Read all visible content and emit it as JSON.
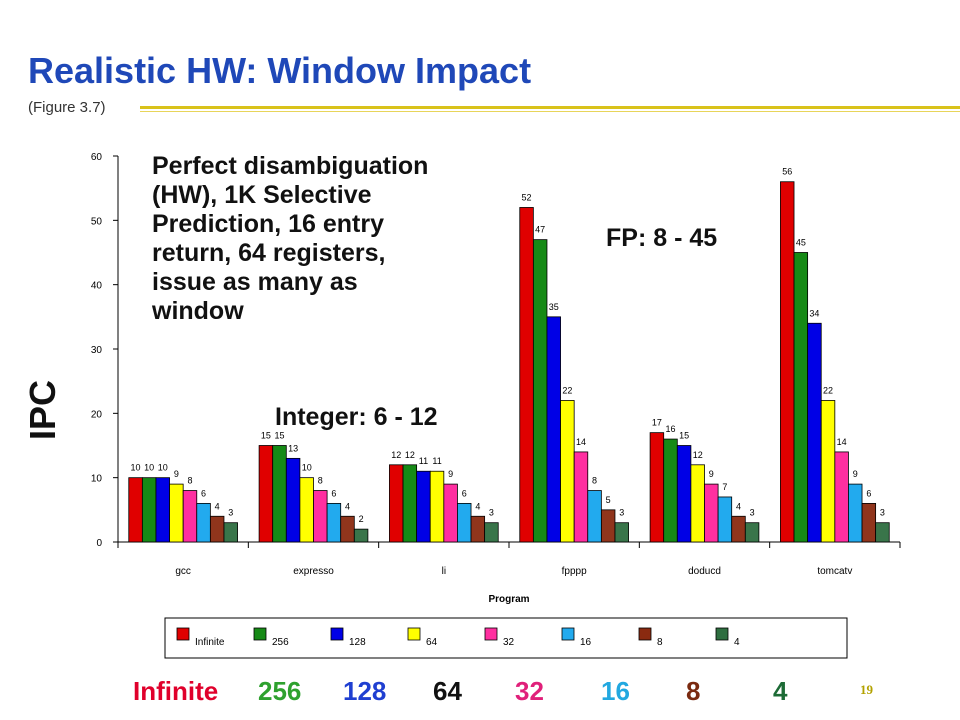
{
  "slide": {
    "title": "Realistic HW: Window Impact",
    "subtitle": "(Figure 3.7)",
    "page_number": "19",
    "annotation_main": [
      "Perfect disambiguation",
      "(HW), 1K Selective",
      "Prediction, 16 entry",
      "return, 64 registers,",
      "issue as many as",
      "window"
    ],
    "annotation_int": "Integer: 6 - 12",
    "annotation_fp": "FP: 8 - 45",
    "y_axis_label": "IPC",
    "bottom_legend": [
      {
        "label": "Infinite",
        "color": "#e0002b"
      },
      {
        "label": "256",
        "color": "#2ea12e"
      },
      {
        "label": "128",
        "color": "#1f3fd1"
      },
      {
        "label": "64",
        "color": "#111111"
      },
      {
        "label": "32",
        "color": "#e0207a"
      },
      {
        "label": "16",
        "color": "#22a8e0"
      },
      {
        "label": "8",
        "color": "#7a2a10"
      },
      {
        "label": "4",
        "color": "#1d6b36"
      }
    ]
  },
  "chart_data": {
    "type": "bar",
    "xlabel": "Program",
    "ylabel": "",
    "ylim": [
      0,
      60
    ],
    "yticks": [
      0,
      10,
      20,
      30,
      40,
      50,
      60
    ],
    "categories": [
      "gcc",
      "expresso",
      "li",
      "fpppp",
      "doducd",
      "tomcatv"
    ],
    "legend_position": "bottom",
    "series": [
      {
        "name": "Infinite",
        "color": "#e00000",
        "values": [
          10,
          15,
          12,
          52,
          17,
          56
        ]
      },
      {
        "name": "256",
        "color": "#168a16",
        "values": [
          10,
          15,
          12,
          47,
          16,
          45
        ]
      },
      {
        "name": "128",
        "color": "#0000e6",
        "values": [
          10,
          13,
          11,
          35,
          15,
          34
        ]
      },
      {
        "name": "64",
        "color": "#ffff00",
        "values": [
          9,
          10,
          11,
          22,
          12,
          22
        ]
      },
      {
        "name": "32",
        "color": "#ff2fa0",
        "values": [
          8,
          8,
          9,
          14,
          9,
          14
        ]
      },
      {
        "name": "16",
        "color": "#22aaee",
        "values": [
          6,
          6,
          6,
          8,
          7,
          9
        ]
      },
      {
        "name": "8",
        "color": "#8a2a10",
        "values": [
          4,
          4,
          4,
          5,
          4,
          6
        ]
      },
      {
        "name": "4",
        "color": "#2e6e40",
        "values": [
          3,
          2,
          3,
          3,
          3,
          3
        ]
      }
    ]
  }
}
